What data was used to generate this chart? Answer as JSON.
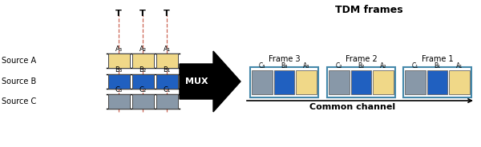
{
  "title": "TDM frames",
  "color_A": "#f0d888",
  "color_B": "#2060c0",
  "color_C": "#8898a8",
  "color_frame_border": "#4488aa",
  "source_labels": [
    "Source A",
    "Source B",
    "Source C"
  ],
  "slot_labels_A": [
    "A₃",
    "A₂",
    "A₁"
  ],
  "slot_labels_B": [
    "B₃",
    "B₂",
    "B₁"
  ],
  "slot_labels_C": [
    "C₃",
    "C₂",
    "C₁"
  ],
  "frame_labels": [
    "Frame 3",
    "Frame 2",
    "Frame 1"
  ],
  "common_channel_label": "Common channel",
  "mux_label": "MUX",
  "dashed_color": "#cc6655"
}
